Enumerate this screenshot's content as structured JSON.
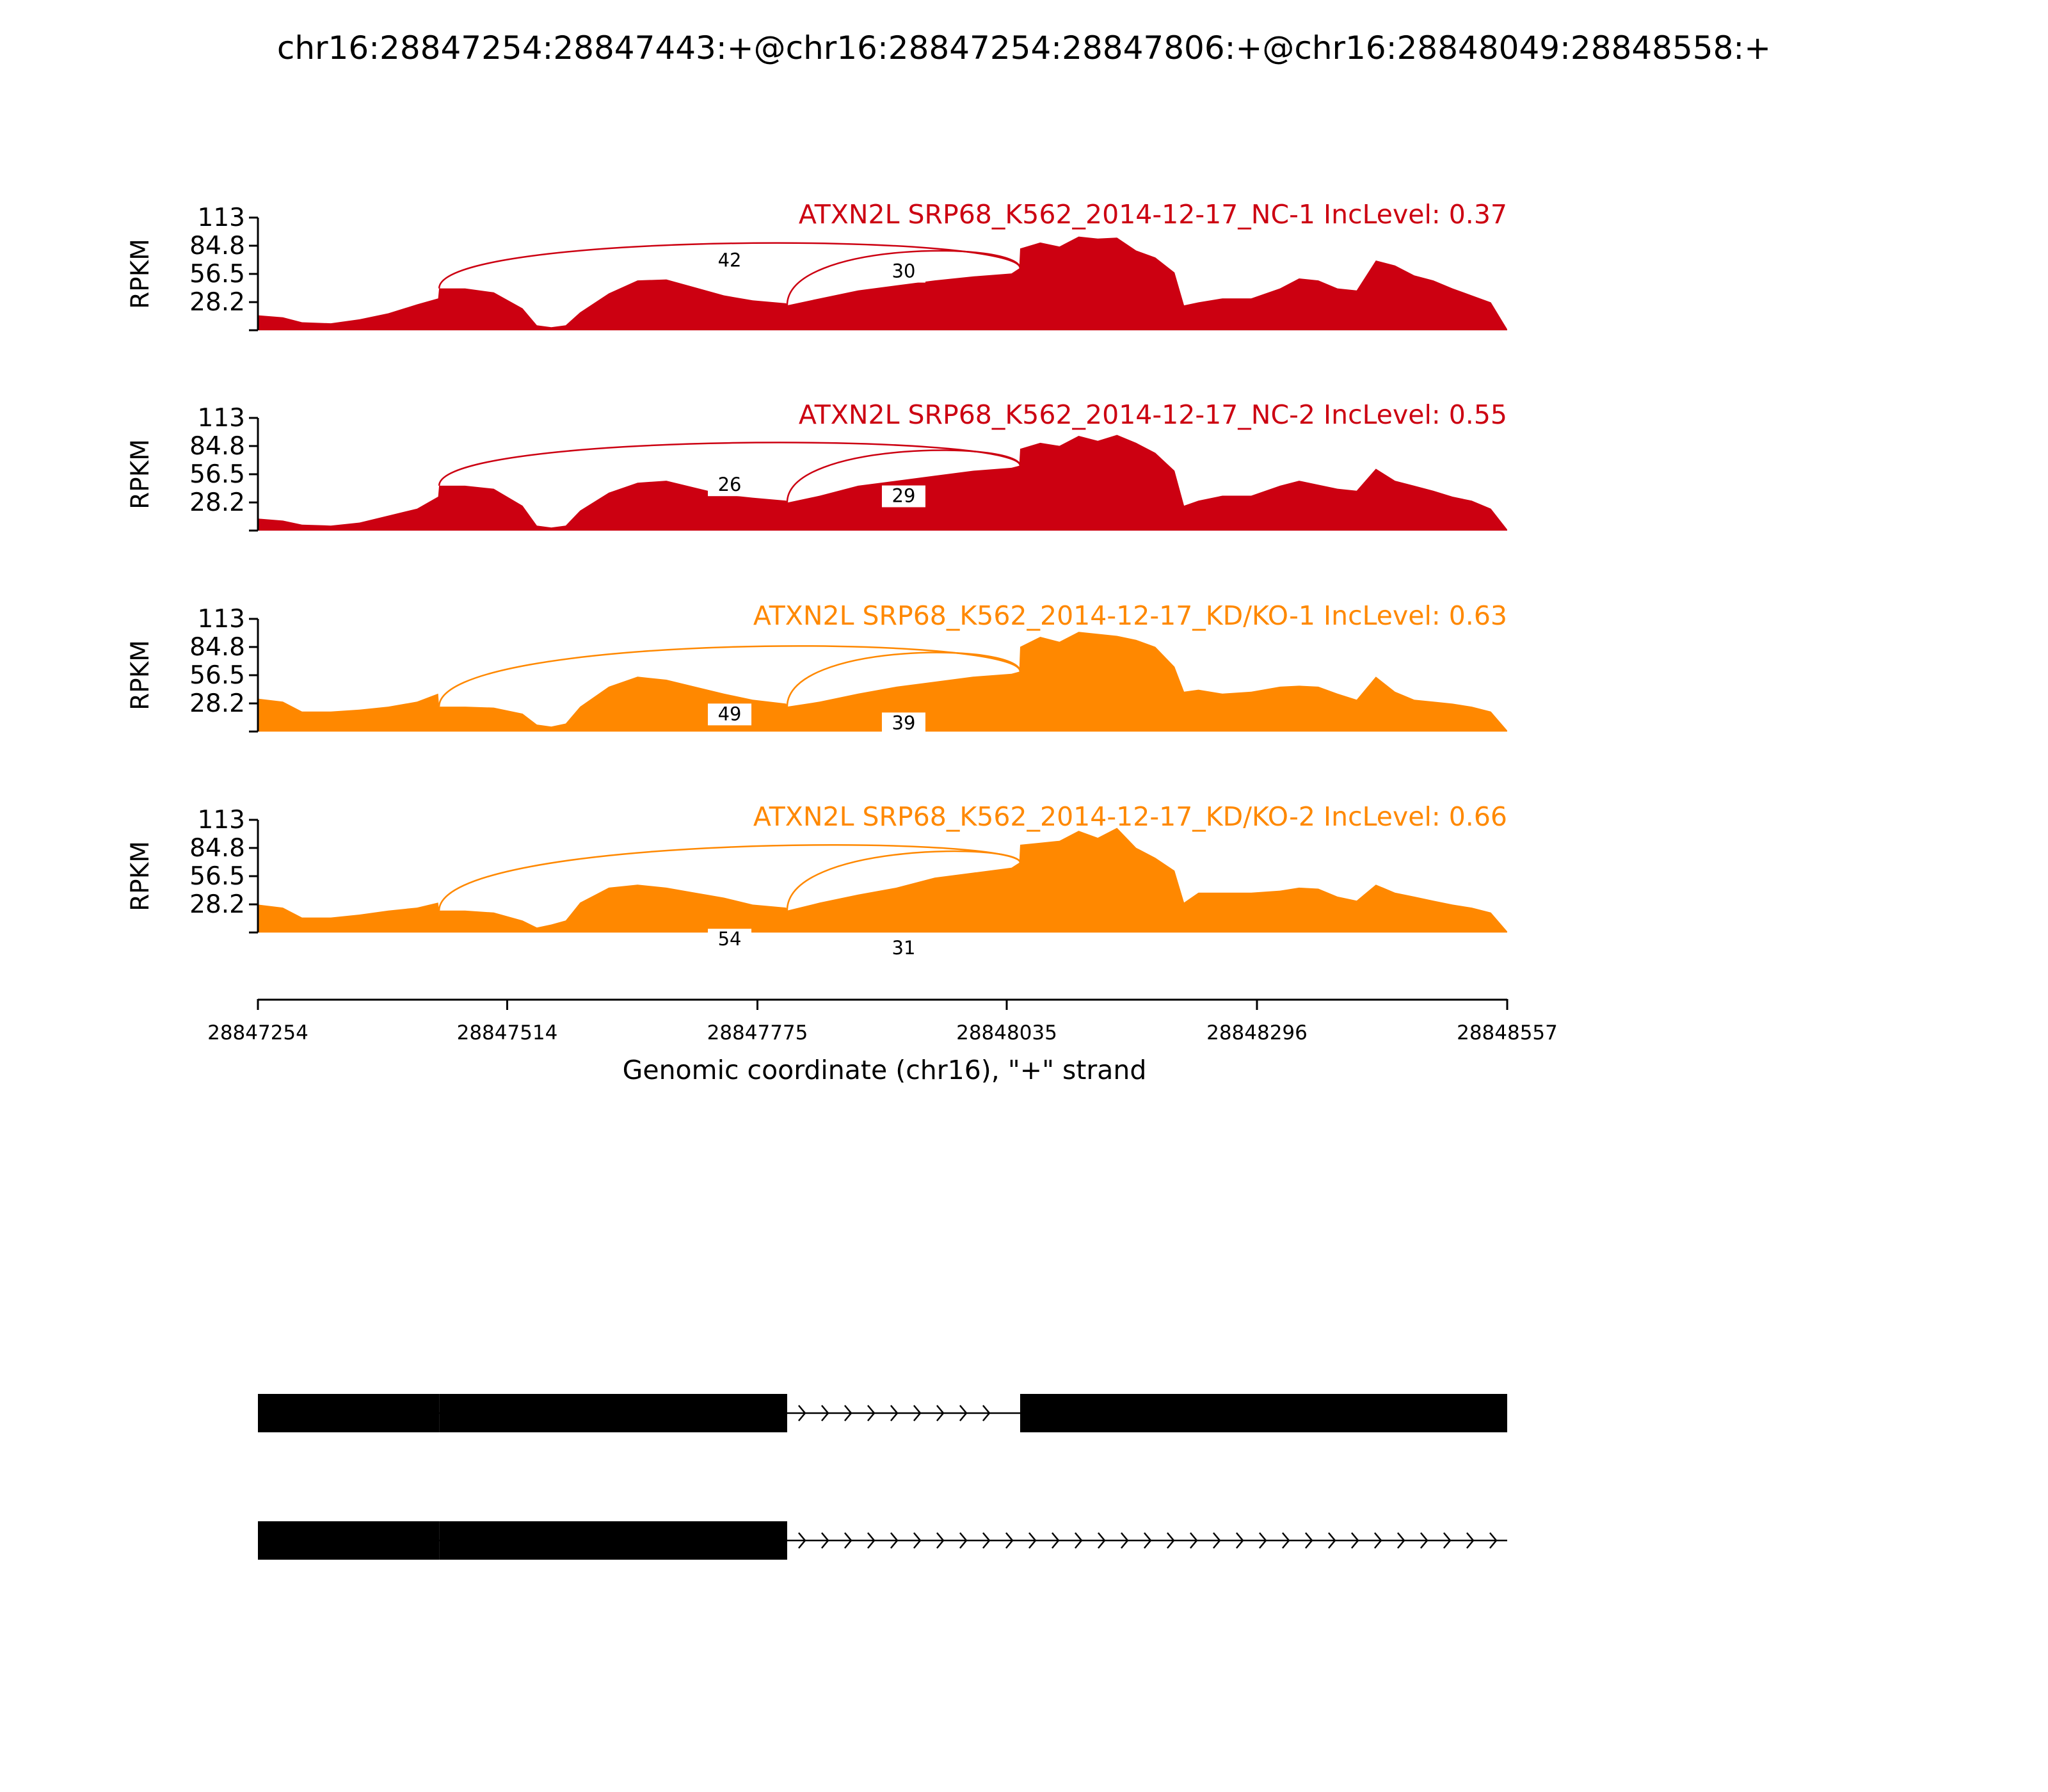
{
  "title": "chr16:28847254:28847443:+@chr16:28847254:28847806:+@chr16:28848049:28848558:+",
  "chart_data": {
    "type": "area",
    "subtype": "sashimi-plot",
    "xlabel": "Genomic coordinate (chr16), \"+\" strand",
    "ylabel": "RPKM",
    "xlim": [
      28847254,
      28848557
    ],
    "ylim": [
      0,
      113
    ],
    "x_ticks": [
      28847254,
      28847514,
      28847775,
      28848035,
      28848296,
      28848557
    ],
    "x_tick_labels": [
      "28847254",
      "28847514",
      "28847775",
      "28848035",
      "28848296",
      "28848557"
    ],
    "y_ticks": [
      28.2,
      56.5,
      84.8,
      113
    ],
    "y_tick_labels": [
      "28.2",
      "56.5",
      "84.8",
      "113"
    ],
    "coverage_x": [
      28847254,
      28847280,
      28847300,
      28847330,
      28847360,
      28847390,
      28847420,
      28847442,
      28847443,
      28847470,
      28847500,
      28847530,
      28847545,
      28847560,
      28847575,
      28847590,
      28847620,
      28847650,
      28847680,
      28847710,
      28847740,
      28847770,
      28847805,
      28847806,
      28847840,
      28847880,
      28847920,
      28847960,
      28848000,
      28848040,
      28848048,
      28848049,
      28848070,
      28848090,
      28848110,
      28848130,
      28848150,
      28848170,
      28848190,
      28848210,
      28848220,
      28848235,
      28848260,
      28848290,
      28848320,
      28848340,
      28848360,
      28848380,
      28848400,
      28848420,
      28848440,
      28848460,
      28848480,
      28848500,
      28848520,
      28848540,
      28848557
    ],
    "series": [
      {
        "name": "ATXN2L SRP68_K562_2014-12-17_NC-1 IncLevel: 0.37",
        "color": "#cc0011",
        "coverage": [
          15,
          13,
          8,
          7,
          11,
          17,
          26,
          32,
          42,
          42,
          38,
          22,
          5,
          3,
          5,
          18,
          37,
          50,
          51,
          43,
          35,
          30,
          27,
          25,
          32,
          40,
          45,
          50,
          54,
          57,
          62,
          82,
          88,
          84,
          94,
          92,
          93,
          80,
          73,
          58,
          25,
          28,
          32,
          32,
          42,
          52,
          50,
          42,
          40,
          70,
          65,
          55,
          50,
          42,
          35,
          28,
          1
        ],
        "junctions": [
          {
            "label": "42",
            "start": 28847443,
            "end": 28848049
          },
          {
            "label": "30",
            "start": 28847806,
            "end": 28848049
          }
        ]
      },
      {
        "name": "ATXN2L SRP68_K562_2014-12-17_NC-2 IncLevel: 0.55",
        "color": "#cc0011",
        "coverage": [
          12,
          10,
          6,
          5,
          8,
          15,
          22,
          34,
          45,
          45,
          42,
          25,
          5,
          3,
          5,
          20,
          38,
          48,
          50,
          43,
          36,
          33,
          30,
          28,
          35,
          45,
          50,
          55,
          60,
          63,
          65,
          82,
          88,
          85,
          95,
          90,
          96,
          88,
          78,
          60,
          25,
          30,
          35,
          35,
          45,
          50,
          46,
          42,
          40,
          62,
          50,
          45,
          40,
          34,
          30,
          22,
          1
        ],
        "junctions": [
          {
            "label": "26",
            "start": 28847443,
            "end": 28848049
          },
          {
            "label": "29",
            "start": 28847806,
            "end": 28848049
          }
        ]
      },
      {
        "name": "ATXN2L SRP68_K562_2014-12-17_KD/KO-1 IncLevel: 0.63",
        "color": "#ff8800",
        "coverage": [
          33,
          30,
          20,
          20,
          22,
          25,
          30,
          38,
          25,
          25,
          24,
          18,
          7,
          5,
          8,
          25,
          45,
          55,
          52,
          45,
          38,
          32,
          28,
          25,
          30,
          38,
          45,
          50,
          55,
          58,
          60,
          85,
          95,
          90,
          100,
          98,
          96,
          92,
          85,
          65,
          40,
          42,
          38,
          40,
          45,
          46,
          45,
          38,
          32,
          55,
          40,
          32,
          30,
          28,
          25,
          20,
          1
        ],
        "junctions": [
          {
            "label": "49",
            "start": 28847443,
            "end": 28848049
          },
          {
            "label": "39",
            "start": 28847806,
            "end": 28848049
          }
        ]
      },
      {
        "name": "ATXN2L SRP68_K562_2014-12-17_KD/KO-2 IncLevel: 0.66",
        "color": "#ff8800",
        "coverage": [
          28,
          25,
          15,
          15,
          18,
          22,
          25,
          30,
          22,
          22,
          20,
          12,
          5,
          8,
          12,
          30,
          45,
          48,
          45,
          40,
          35,
          28,
          25,
          22,
          30,
          38,
          45,
          55,
          60,
          65,
          70,
          88,
          90,
          92,
          102,
          95,
          105,
          85,
          75,
          62,
          30,
          40,
          40,
          40,
          42,
          45,
          44,
          36,
          32,
          48,
          40,
          36,
          32,
          28,
          25,
          20,
          1
        ],
        "junctions": [
          {
            "label": "54",
            "start": 28847443,
            "end": 28848049
          },
          {
            "label": "31",
            "start": 28847806,
            "end": 28848049
          }
        ]
      }
    ],
    "isoforms": [
      {
        "exons": [
          [
            28847254,
            28847443
          ],
          [
            28847443,
            28847806
          ],
          [
            28848049,
            28848557
          ]
        ]
      },
      {
        "exons": [
          [
            28847254,
            28847443
          ],
          [
            28847443,
            28847806
          ]
        ]
      }
    ]
  }
}
